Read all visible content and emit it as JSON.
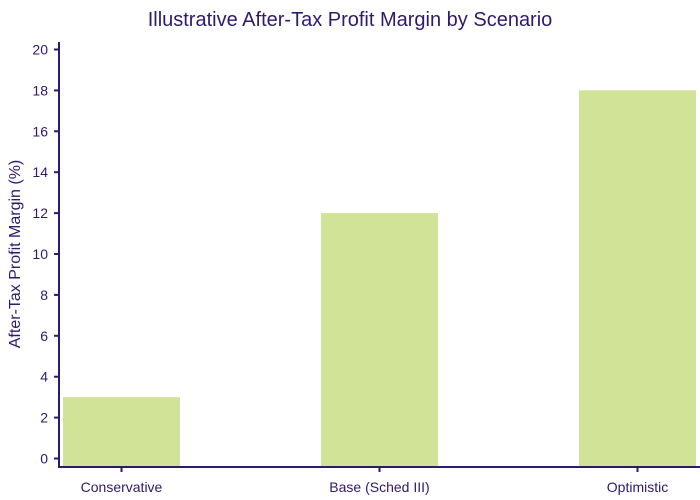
{
  "chart_data": {
    "type": "bar",
    "title": "Illustrative After-Tax Profit Margin by Scenario",
    "xlabel": "",
    "ylabel": "After-Tax Profit Margin (%)",
    "categories": [
      "Conservative",
      "Base (Sched III)",
      "Optimistic"
    ],
    "values": [
      3,
      12,
      18
    ],
    "ylim": [
      0,
      20
    ],
    "yticks": [
      0,
      2,
      4,
      6,
      8,
      10,
      12,
      14,
      16,
      18,
      20
    ],
    "grid": false,
    "legend": "none"
  },
  "colors": {
    "bar": "#d0e397",
    "axis": "#2e1a6e",
    "text": "#2e1a6e"
  }
}
